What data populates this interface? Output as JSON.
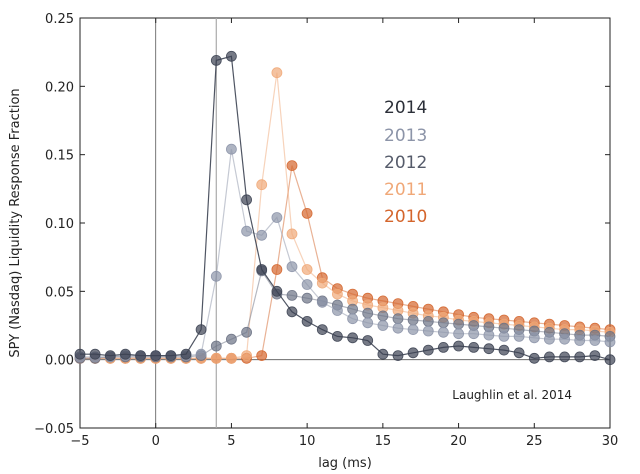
{
  "chart_data": {
    "type": "scatter",
    "xlabel": "lag (ms)",
    "ylabel": "SPY (Nasdaq) Liquidity Response Fraction",
    "xlim": [
      -5,
      30
    ],
    "ylim": [
      -0.05,
      0.25
    ],
    "x_ticks": [
      -5,
      0,
      5,
      10,
      15,
      20,
      25,
      30
    ],
    "y_ticks": [
      -0.05,
      0.0,
      0.05,
      0.1,
      0.15,
      0.2,
      0.25
    ],
    "x_tick_labels": [
      "−5",
      "0",
      "5",
      "10",
      "15",
      "20",
      "25",
      "30"
    ],
    "y_tick_labels": [
      "−0.05",
      "0.00",
      "0.05",
      "0.10",
      "0.15",
      "0.20",
      "0.25"
    ],
    "reference_lines": {
      "vertical": [
        0,
        4
      ],
      "horizontal": [
        0
      ]
    },
    "grid": false,
    "legend_position": "upper-right",
    "annotation": "Laughlin et al. 2014",
    "series": [
      {
        "name": "2014",
        "color": "#3c4252",
        "connected": true,
        "points": [
          [
            -5,
            0.004
          ],
          [
            -4,
            0.004
          ],
          [
            -3,
            0.003
          ],
          [
            -2,
            0.004
          ],
          [
            -1,
            0.003
          ],
          [
            0,
            0.003
          ],
          [
            1,
            0.003
          ],
          [
            2,
            0.004
          ],
          [
            3,
            0.022
          ],
          [
            4,
            0.219
          ],
          [
            5,
            0.222
          ],
          [
            6,
            0.117
          ],
          [
            7,
            0.066
          ],
          [
            8,
            0.05
          ],
          [
            9,
            0.035
          ],
          [
            10,
            0.028
          ],
          [
            11,
            0.022
          ],
          [
            12,
            0.017
          ],
          [
            13,
            0.016
          ],
          [
            14,
            0.014
          ],
          [
            15,
            0.004
          ],
          [
            16,
            0.003
          ],
          [
            17,
            0.005
          ],
          [
            18,
            0.007
          ],
          [
            19,
            0.009
          ],
          [
            20,
            0.01
          ],
          [
            21,
            0.009
          ],
          [
            22,
            0.008
          ],
          [
            23,
            0.007
          ],
          [
            24,
            0.005
          ],
          [
            25,
            0.001
          ],
          [
            26,
            0.002
          ],
          [
            27,
            0.002
          ],
          [
            28,
            0.002
          ],
          [
            29,
            0.003
          ],
          [
            30,
            0.0
          ]
        ]
      },
      {
        "name": "2013",
        "color": "#8c94a8",
        "connected": true,
        "points": [
          [
            -5,
            0.002
          ],
          [
            -4,
            0.002
          ],
          [
            -3,
            0.002
          ],
          [
            -2,
            0.003
          ],
          [
            -1,
            0.003
          ],
          [
            0,
            0.003
          ],
          [
            1,
            0.003
          ],
          [
            2,
            0.003
          ],
          [
            3,
            0.004
          ],
          [
            4,
            0.061
          ],
          [
            5,
            0.154
          ],
          [
            6,
            0.094
          ],
          [
            7,
            0.091
          ],
          [
            8,
            0.104
          ],
          [
            9,
            0.068
          ],
          [
            10,
            0.055
          ],
          [
            11,
            0.042
          ],
          [
            12,
            0.036
          ],
          [
            13,
            0.03
          ],
          [
            14,
            0.027
          ],
          [
            15,
            0.025
          ],
          [
            16,
            0.023
          ],
          [
            17,
            0.022
          ],
          [
            18,
            0.021
          ],
          [
            19,
            0.02
          ],
          [
            20,
            0.019
          ],
          [
            21,
            0.019
          ],
          [
            22,
            0.018
          ],
          [
            23,
            0.017
          ],
          [
            24,
            0.017
          ],
          [
            25,
            0.016
          ],
          [
            26,
            0.015
          ],
          [
            27,
            0.015
          ],
          [
            28,
            0.014
          ],
          [
            29,
            0.014
          ],
          [
            30,
            0.013
          ]
        ]
      },
      {
        "name": "2012",
        "color": "#6b7284",
        "connected": true,
        "points": [
          [
            -5,
            0.001
          ],
          [
            -4,
            0.001
          ],
          [
            -3,
            0.002
          ],
          [
            -2,
            0.002
          ],
          [
            -1,
            0.002
          ],
          [
            0,
            0.002
          ],
          [
            1,
            0.002
          ],
          [
            2,
            0.002
          ],
          [
            3,
            0.003
          ],
          [
            4,
            0.01
          ],
          [
            5,
            0.015
          ],
          [
            6,
            0.02
          ],
          [
            7,
            0.065
          ],
          [
            8,
            0.048
          ],
          [
            9,
            0.047
          ],
          [
            10,
            0.045
          ],
          [
            11,
            0.043
          ],
          [
            12,
            0.04
          ],
          [
            13,
            0.037
          ],
          [
            14,
            0.034
          ],
          [
            15,
            0.032
          ],
          [
            16,
            0.03
          ],
          [
            17,
            0.029
          ],
          [
            18,
            0.028
          ],
          [
            19,
            0.027
          ],
          [
            20,
            0.026
          ],
          [
            21,
            0.025
          ],
          [
            22,
            0.024
          ],
          [
            23,
            0.023
          ],
          [
            24,
            0.022
          ],
          [
            25,
            0.021
          ],
          [
            26,
            0.02
          ],
          [
            27,
            0.019
          ],
          [
            28,
            0.018
          ],
          [
            29,
            0.018
          ],
          [
            30,
            0.017
          ]
        ]
      },
      {
        "name": "2011",
        "color": "#f0a878",
        "connected": true,
        "points": [
          [
            -5,
            0.001
          ],
          [
            -4,
            0.001
          ],
          [
            -3,
            0.001
          ],
          [
            -2,
            0.001
          ],
          [
            -1,
            0.001
          ],
          [
            0,
            0.001
          ],
          [
            1,
            0.001
          ],
          [
            2,
            0.001
          ],
          [
            3,
            0.001
          ],
          [
            4,
            0.001
          ],
          [
            5,
            0.001
          ],
          [
            6,
            0.003
          ],
          [
            7,
            0.128
          ],
          [
            8,
            0.21
          ],
          [
            9,
            0.092
          ],
          [
            10,
            0.066
          ],
          [
            11,
            0.056
          ],
          [
            12,
            0.048
          ],
          [
            13,
            0.043
          ],
          [
            14,
            0.04
          ],
          [
            15,
            0.038
          ],
          [
            16,
            0.036
          ],
          [
            17,
            0.034
          ],
          [
            18,
            0.032
          ],
          [
            19,
            0.031
          ],
          [
            20,
            0.029
          ],
          [
            21,
            0.028
          ],
          [
            22,
            0.027
          ],
          [
            23,
            0.026
          ],
          [
            24,
            0.025
          ],
          [
            25,
            0.024
          ],
          [
            26,
            0.023
          ],
          [
            27,
            0.022
          ],
          [
            28,
            0.022
          ],
          [
            29,
            0.021
          ],
          [
            30,
            0.02
          ]
        ]
      },
      {
        "name": "2010",
        "color": "#d4652c",
        "connected": true,
        "points": [
          [
            -5,
            0.001
          ],
          [
            -4,
            0.001
          ],
          [
            -3,
            0.001
          ],
          [
            -2,
            0.001
          ],
          [
            -1,
            0.001
          ],
          [
            0,
            0.001
          ],
          [
            1,
            0.001
          ],
          [
            2,
            0.001
          ],
          [
            3,
            0.001
          ],
          [
            4,
            0.001
          ],
          [
            5,
            0.001
          ],
          [
            6,
            0.001
          ],
          [
            7,
            0.003
          ],
          [
            8,
            0.066
          ],
          [
            9,
            0.142
          ],
          [
            10,
            0.107
          ],
          [
            11,
            0.06
          ],
          [
            12,
            0.052
          ],
          [
            13,
            0.048
          ],
          [
            14,
            0.045
          ],
          [
            15,
            0.043
          ],
          [
            16,
            0.041
          ],
          [
            17,
            0.039
          ],
          [
            18,
            0.037
          ],
          [
            19,
            0.035
          ],
          [
            20,
            0.033
          ],
          [
            21,
            0.031
          ],
          [
            22,
            0.03
          ],
          [
            23,
            0.029
          ],
          [
            24,
            0.028
          ],
          [
            25,
            0.027
          ],
          [
            26,
            0.026
          ],
          [
            27,
            0.025
          ],
          [
            28,
            0.024
          ],
          [
            29,
            0.023
          ],
          [
            30,
            0.022
          ]
        ]
      }
    ]
  },
  "legend": {
    "items": [
      {
        "label": "2014",
        "color": "#2b2f38"
      },
      {
        "label": "2013",
        "color": "#8c94a8"
      },
      {
        "label": "2012",
        "color": "#555b6a"
      },
      {
        "label": "2011",
        "color": "#f0a878"
      },
      {
        "label": "2010",
        "color": "#d4652c"
      }
    ]
  }
}
